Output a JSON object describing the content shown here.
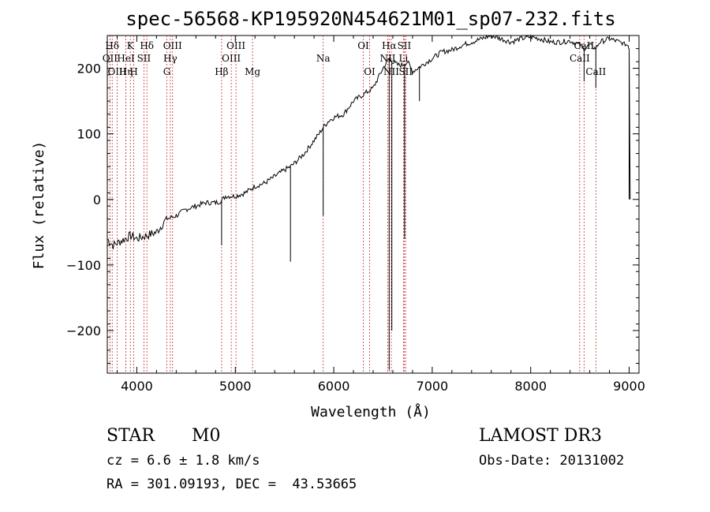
{
  "chart_data": {
    "type": "line",
    "title": "spec-56568-KP195920N454621M01_sp07-232.fits",
    "xlabel": "Wavelength (Å)",
    "ylabel": "Flux (relative)",
    "xlim": [
      3700,
      9100
    ],
    "ylim": [
      -265,
      250
    ],
    "xticks": [
      4000,
      5000,
      6000,
      7000,
      8000,
      9000
    ],
    "yticks": [
      -200,
      -100,
      0,
      100,
      200
    ],
    "xtick_labels": [
      "4000",
      "5000",
      "6000",
      "7000",
      "8000",
      "9000"
    ],
    "ytick_labels": [
      "−200",
      "−100",
      "0",
      "100",
      "200"
    ],
    "series": [
      {
        "name": "spectrum",
        "x": [
          3700,
          3760,
          3820,
          3880,
          3940,
          4000,
          4100,
          4200,
          4300,
          4400,
          4500,
          4600,
          4700,
          4800,
          4860,
          4900,
          5000,
          5100,
          5200,
          5300,
          5400,
          5500,
          5560,
          5600,
          5700,
          5800,
          5850,
          5893,
          5950,
          6000,
          6100,
          6200,
          6300,
          6400,
          6500,
          6563,
          6600,
          6650,
          6700,
          6750,
          6800,
          6850,
          6900,
          7000,
          7100,
          7200,
          7300,
          7400,
          7500,
          7600,
          7700,
          7800,
          7900,
          8000,
          8100,
          8200,
          8300,
          8400,
          8500,
          8542,
          8600,
          8662,
          8700,
          8800,
          8900,
          8990,
          9000,
          9010
        ],
        "y": [
          -60,
          -70,
          -65,
          -60,
          -55,
          -60,
          -55,
          -50,
          -30,
          -25,
          -15,
          -10,
          -5,
          -5,
          -2,
          5,
          5,
          10,
          20,
          25,
          35,
          45,
          50,
          55,
          70,
          90,
          100,
          110,
          120,
          125,
          130,
          150,
          160,
          170,
          200,
          215,
          210,
          205,
          205,
          210,
          195,
          200,
          205,
          215,
          225,
          228,
          235,
          240,
          245,
          250,
          245,
          240,
          245,
          248,
          245,
          240,
          240,
          242,
          235,
          230,
          235,
          230,
          240,
          245,
          240,
          235,
          230,
          0
        ]
      }
    ],
    "line_labels": [
      {
        "label": "Hδ",
        "wl": 3750,
        "row": 1
      },
      {
        "label": "K",
        "wl": 3934,
        "row": 1
      },
      {
        "label": "Hδ",
        "wl": 4102,
        "row": 1
      },
      {
        "label": "OII",
        "wl": 3727,
        "row": 2
      },
      {
        "label": "HeI",
        "wl": 3889,
        "row": 2
      },
      {
        "label": "SII",
        "wl": 4072,
        "row": 2
      },
      {
        "label": "OIII",
        "wl": 3800,
        "row": 3
      },
      {
        "label": "Hη",
        "wl": 3889,
        "row": 3
      },
      {
        "label": "H",
        "wl": 3969,
        "row": 3
      },
      {
        "label": "OIII",
        "wl": 4363,
        "row": 1
      },
      {
        "label": "Hγ",
        "wl": 4340,
        "row": 2
      },
      {
        "label": "G",
        "wl": 4305,
        "row": 3
      },
      {
        "label": "OIII",
        "wl": 5007,
        "row": 1
      },
      {
        "label": "OIII",
        "wl": 4959,
        "row": 2
      },
      {
        "label": "Hβ",
        "wl": 4861,
        "row": 3
      },
      {
        "label": "Mg",
        "wl": 5175,
        "row": 3
      },
      {
        "label": "Na",
        "wl": 5893,
        "row": 2
      },
      {
        "label": "OI",
        "wl": 6300,
        "row": 1
      },
      {
        "label": "OI",
        "wl": 6364,
        "row": 3
      },
      {
        "label": "Hα",
        "wl": 6563,
        "row": 1
      },
      {
        "label": "SII",
        "wl": 6716,
        "row": 1
      },
      {
        "label": "NII",
        "wl": 6548,
        "row": 2
      },
      {
        "label": "Li",
        "wl": 6708,
        "row": 2
      },
      {
        "label": "NII",
        "wl": 6584,
        "row": 3
      },
      {
        "label": "SII",
        "wl": 6731,
        "row": 3
      },
      {
        "label": "CaII",
        "wl": 8542,
        "row": 1
      },
      {
        "label": "CaII",
        "wl": 8498,
        "row": 2
      },
      {
        "label": "CaII",
        "wl": 8662,
        "row": 3
      }
    ]
  },
  "info": {
    "object_class": "STAR",
    "subclass": "M0",
    "survey": "LAMOST DR3",
    "cz": "cz = 6.6 ± 1.8 km/s",
    "obs_date": "Obs-Date: 20131002",
    "coords": "RA = 301.09193, DEC =  43.53665"
  }
}
